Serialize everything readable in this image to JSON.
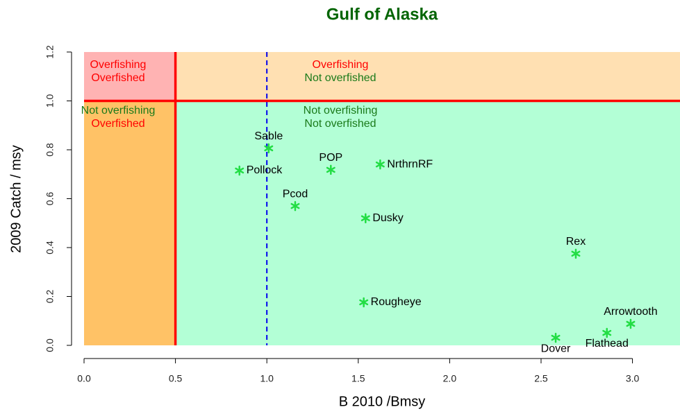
{
  "chart_data": {
    "type": "scatter",
    "title": "Gulf of Alaska",
    "x_label": "B 2010 /Bmsy",
    "y_label": "2009 Catch / msy",
    "xlim": [
      0,
      3.26
    ],
    "ylim": [
      0,
      1.2
    ],
    "xticks": [
      {
        "value": 0,
        "label": "0.0"
      },
      0.5,
      {
        "value": 1,
        "label": "1.0"
      },
      1.5,
      {
        "value": 2,
        "label": "2.0"
      },
      2.5,
      {
        "value": 3,
        "label": "3.0"
      }
    ],
    "yticks": [
      {
        "value": 0,
        "label": "0.0"
      },
      0.2,
      0.4,
      0.6,
      0.8,
      {
        "value": 1,
        "label": "1.0"
      },
      1.2
    ],
    "threshold_x": 0.5,
    "threshold_y": 1.0,
    "threshold_color": "#ff0000",
    "reference_x": 1.0,
    "reference_color": "#0000ee",
    "zones": [
      {
        "color": "#ffb3b3",
        "lines": [
          {
            "text": "Overfishing",
            "color": "#ff0000"
          },
          {
            "text": "Overfished",
            "color": "#ff0000"
          }
        ]
      },
      {
        "color": "#ffe0b2",
        "lines": [
          {
            "text": "Overfishing",
            "color": "#ff0000"
          },
          {
            "text": "Not overfished",
            "color": "#1a7a1a"
          }
        ]
      },
      {
        "color": "#ffc266",
        "lines": [
          {
            "text": "Not overfishing",
            "color": "#1a7a1a"
          },
          {
            "text": "Overfished",
            "color": "#ff0000"
          }
        ]
      },
      {
        "color": "#b3ffd6",
        "lines": [
          {
            "text": "Not overfishing",
            "color": "#1a7a1a"
          },
          {
            "text": "Not overfished",
            "color": "#1a7a1a"
          }
        ]
      }
    ],
    "point_color": "#22dd44",
    "names": [
      "Sable",
      "Pollock",
      "POP",
      "NrthrnRF",
      "Pcod",
      "Dusky",
      "Rex",
      "Rougheye",
      "Arrowtooth",
      "Flathead",
      "Dover"
    ],
    "x": [
      1.01,
      0.85,
      1.35,
      1.62,
      1.155,
      1.54,
      2.69,
      1.53,
      2.99,
      2.86,
      2.58
    ],
    "y": [
      0.806,
      0.715,
      0.718,
      0.74,
      0.57,
      0.52,
      0.375,
      0.176,
      0.088,
      0.051,
      0.031
    ]
  }
}
